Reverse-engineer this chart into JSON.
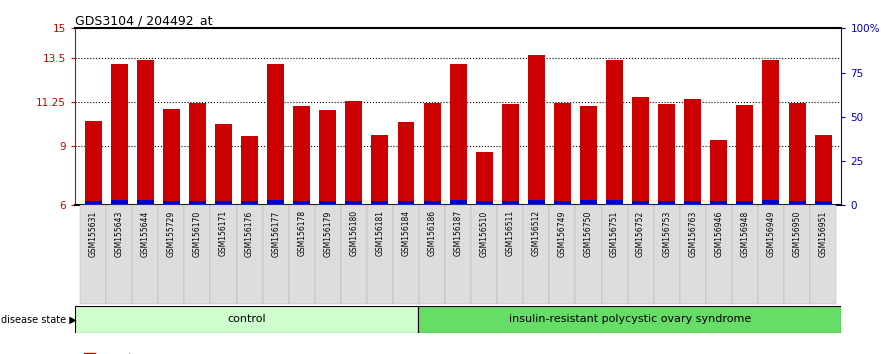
{
  "title": "GDS3104 / 204492_at",
  "samples": [
    "GSM155631",
    "GSM155643",
    "GSM155644",
    "GSM155729",
    "GSM156170",
    "GSM156171",
    "GSM156176",
    "GSM156177",
    "GSM156178",
    "GSM156179",
    "GSM156180",
    "GSM156181",
    "GSM156184",
    "GSM156186",
    "GSM156187",
    "GSM156510",
    "GSM156511",
    "GSM156512",
    "GSM156749",
    "GSM156750",
    "GSM156751",
    "GSM156752",
    "GSM156753",
    "GSM156763",
    "GSM156946",
    "GSM156948",
    "GSM156949",
    "GSM156950",
    "GSM156951"
  ],
  "count_values": [
    10.3,
    13.2,
    13.4,
    10.9,
    11.2,
    10.15,
    9.5,
    13.2,
    11.05,
    10.85,
    11.3,
    9.6,
    10.25,
    11.2,
    13.2,
    8.7,
    11.15,
    13.65,
    11.2,
    11.05,
    13.4,
    11.5,
    11.15,
    11.4,
    9.3,
    11.1,
    13.4,
    11.2,
    9.6
  ],
  "percentile_values": [
    0.2,
    0.25,
    0.25,
    0.2,
    0.2,
    0.2,
    0.2,
    0.25,
    0.2,
    0.2,
    0.2,
    0.2,
    0.2,
    0.22,
    0.25,
    0.2,
    0.2,
    0.25,
    0.2,
    0.25,
    0.25,
    0.2,
    0.2,
    0.2,
    0.2,
    0.2,
    0.25,
    0.2,
    0.2
  ],
  "group_labels": [
    "control",
    "insulin-resistant polycystic ovary syndrome"
  ],
  "group_sizes": [
    13,
    16
  ],
  "group_color_light": "#CCFFCC",
  "group_color_dark": "#66DD66",
  "bar_color_red": "#CC0000",
  "bar_color_blue": "#0000CC",
  "ymin": 6,
  "ymax": 15,
  "yticks": [
    6,
    9,
    11.25,
    13.5,
    15
  ],
  "ytick_labels": [
    "6",
    "9",
    "11.25",
    "13.5",
    "15"
  ],
  "y2ticks": [
    0,
    25,
    50,
    75,
    100
  ],
  "y2tick_labels": [
    "0",
    "25",
    "50",
    "75",
    "100%"
  ],
  "dotted_lines": [
    9.0,
    11.25,
    13.5
  ],
  "bar_width": 0.65,
  "axis_color_left": "#CC0000",
  "axis_color_right": "#0000BB"
}
